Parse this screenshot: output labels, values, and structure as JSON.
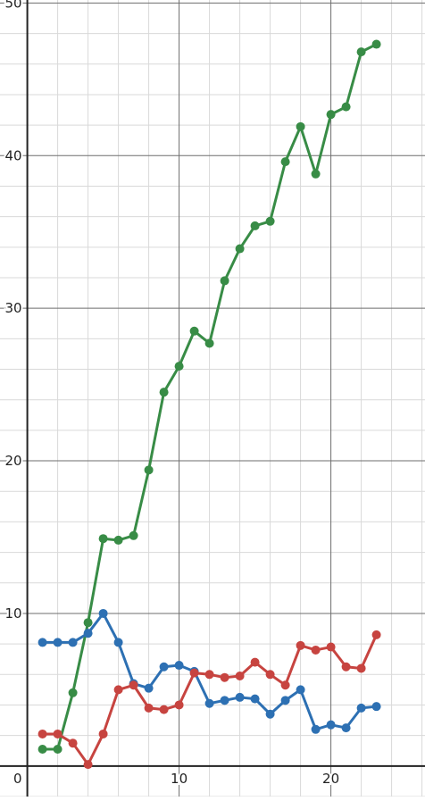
{
  "chart_data": {
    "type": "line",
    "xlabel": "",
    "ylabel": "",
    "xlim": [
      -1.8,
      26.2
    ],
    "ylim": [
      -2.0,
      50.2
    ],
    "x_ticks": [
      {
        "value": 10,
        "label": "10"
      },
      {
        "value": 20,
        "label": "20"
      }
    ],
    "y_ticks": [
      {
        "value": 10,
        "label": "10"
      },
      {
        "value": 20,
        "label": "20"
      },
      {
        "value": 30,
        "label": "30"
      },
      {
        "value": 40,
        "label": "40"
      },
      {
        "value": 50,
        "label": "50"
      }
    ],
    "origin_label": "0",
    "grid": {
      "major_step": 10,
      "minor_step": 2,
      "major_color": "#6e6e6e",
      "minor_color": "#d9d9d9"
    },
    "x": [
      1,
      2,
      3,
      4,
      5,
      6,
      7,
      8,
      9,
      10,
      11,
      12,
      13,
      14,
      15,
      16,
      17,
      18,
      19,
      20,
      21,
      22,
      23
    ],
    "series": [
      {
        "color": "#388c46",
        "values": [
          1.1,
          1.1,
          4.8,
          9.4,
          14.9,
          14.8,
          15.1,
          19.4,
          24.5,
          26.2,
          28.5,
          27.7,
          31.8,
          33.9,
          35.4,
          35.7,
          39.6,
          41.9,
          38.8,
          42.7,
          43.2,
          46.8,
          47.3
        ]
      },
      {
        "color": "#2d70b3",
        "values": [
          8.1,
          8.1,
          8.1,
          8.7,
          10.0,
          8.1,
          5.4,
          5.1,
          6.5,
          6.6,
          6.2,
          4.1,
          4.3,
          4.5,
          4.4,
          3.4,
          4.3,
          5.0,
          2.4,
          2.7,
          2.5,
          3.8,
          3.9
        ]
      },
      {
        "color": "#c74440",
        "values": [
          2.1,
          2.1,
          1.5,
          0.1,
          2.1,
          5.0,
          5.3,
          3.8,
          3.7,
          4.0,
          6.1,
          6.0,
          5.8,
          5.9,
          6.8,
          6.0,
          5.3,
          7.9,
          7.6,
          7.8,
          6.5,
          6.4,
          8.6
        ]
      }
    ]
  }
}
